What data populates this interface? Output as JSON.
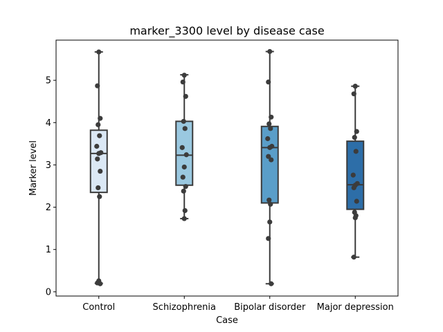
{
  "chart_data": {
    "type": "box",
    "title": "marker_3300 level by disease case",
    "xlabel": "Case",
    "ylabel": "Marker level",
    "ylim": [
      -0.1,
      5.95
    ],
    "yticks": [
      0,
      1,
      2,
      3,
      4,
      5
    ],
    "categories": [
      "Control",
      "Schizophrenia",
      "Bipolar disorder",
      "Major depression"
    ],
    "colors": [
      "#dbe8f5",
      "#9ac8e0",
      "#5a9ec9",
      "#2d6ea8"
    ],
    "grid": false,
    "boxes": [
      {
        "category": "Control",
        "whisker_low": 0.2,
        "q1": 2.35,
        "median": 3.27,
        "q3": 3.82,
        "whisker_high": 5.67
      },
      {
        "category": "Schizophrenia",
        "whisker_low": 1.73,
        "q1": 2.52,
        "median": 3.23,
        "q3": 4.03,
        "whisker_high": 5.13
      },
      {
        "category": "Bipolar disorder",
        "whisker_low": 0.19,
        "q1": 2.1,
        "median": 3.41,
        "q3": 3.91,
        "whisker_high": 5.68
      },
      {
        "category": "Major depression",
        "whisker_low": 0.82,
        "q1": 1.95,
        "median": 2.53,
        "q3": 3.56,
        "whisker_high": 4.86
      }
    ],
    "points": [
      {
        "category": "Control",
        "values": [
          5.67,
          4.87,
          4.1,
          3.95,
          3.69,
          3.44,
          3.29,
          3.27,
          3.14,
          2.85,
          2.46,
          2.25,
          0.26,
          0.21,
          0.19
        ]
      },
      {
        "category": "Schizophrenia",
        "values": [
          5.12,
          4.96,
          4.62,
          4.03,
          3.86,
          3.41,
          3.24,
          2.95,
          2.71,
          2.49,
          2.38,
          1.92,
          1.73
        ]
      },
      {
        "category": "Bipolar disorder",
        "values": [
          5.68,
          4.96,
          4.13,
          3.97,
          3.86,
          3.62,
          3.44,
          3.41,
          3.2,
          3.12,
          2.17,
          2.07,
          1.65,
          1.26,
          0.19
        ]
      },
      {
        "category": "Major depression",
        "values": [
          4.86,
          4.68,
          3.79,
          3.65,
          3.32,
          2.76,
          2.56,
          2.52,
          2.46,
          2.14,
          1.88,
          1.8,
          1.75,
          0.82
        ]
      }
    ]
  }
}
